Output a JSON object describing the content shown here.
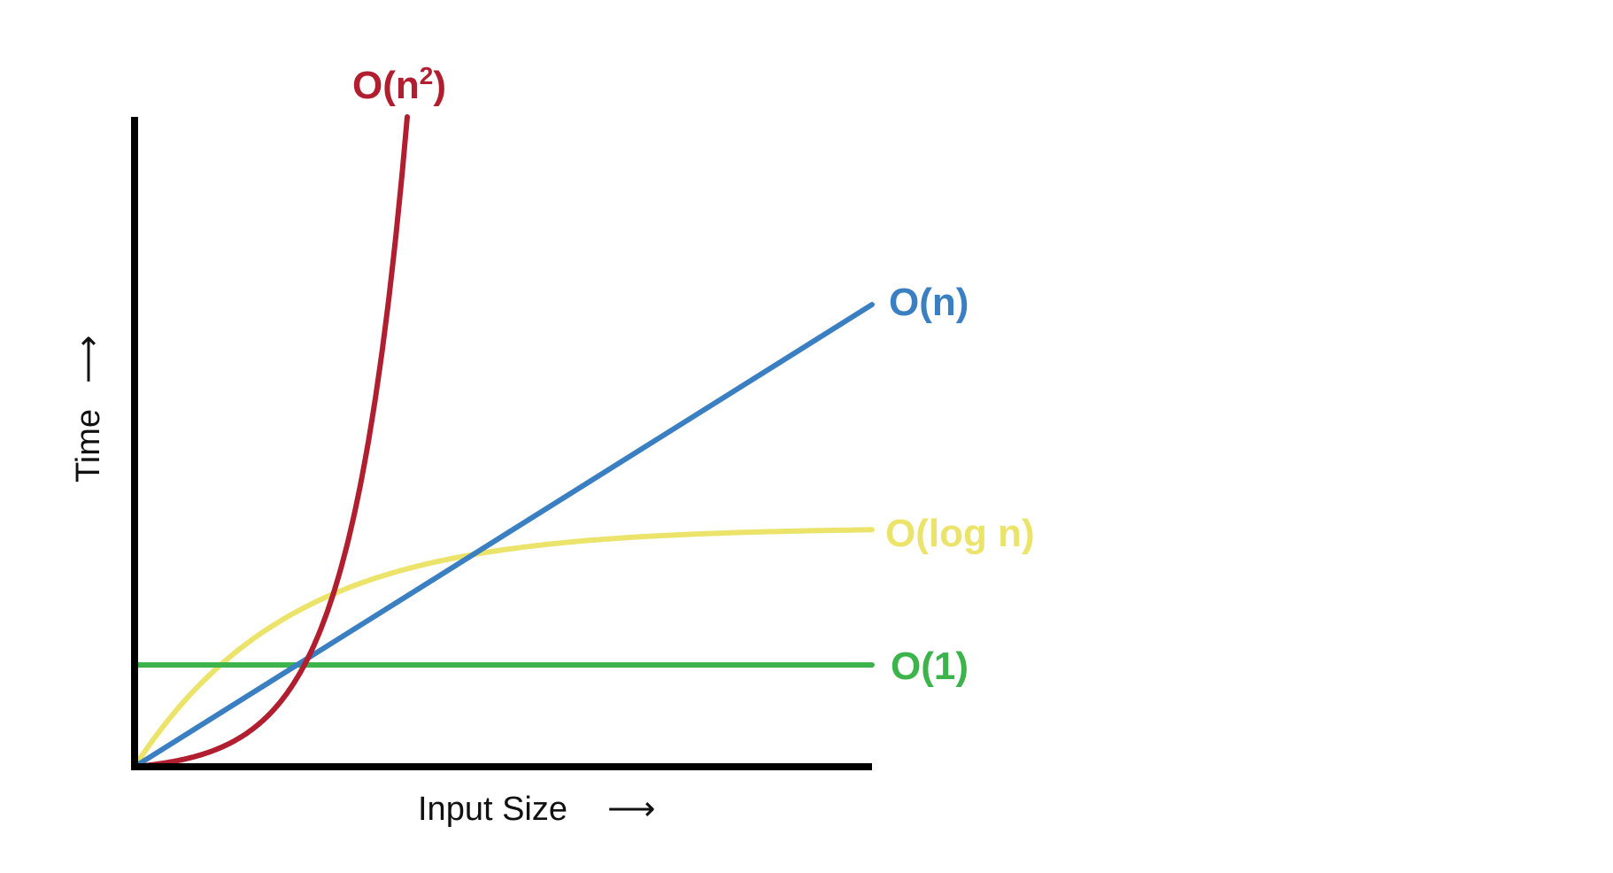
{
  "chart_data": {
    "type": "line",
    "title": "",
    "xlabel": "Input Size",
    "ylabel": "Time",
    "axis_arrow": "⟶",
    "grid": false,
    "x_ticks": false,
    "y_ticks": false,
    "axis_color": "#000000",
    "series": [
      {
        "key": "n2",
        "name": "O(n²)",
        "label_base": "O(n",
        "label_sup": "2",
        "label_close": ")",
        "color": "#b01e2f",
        "curve": "quadratic"
      },
      {
        "key": "n",
        "name": "O(n)",
        "color": "#3a7fc1",
        "curve": "linear"
      },
      {
        "key": "logn",
        "name": "O(log n)",
        "color": "#ece46a",
        "curve": "logarithmic"
      },
      {
        "key": "one",
        "name": "O(1)",
        "color": "#3cb44b",
        "curve": "constant"
      }
    ]
  }
}
